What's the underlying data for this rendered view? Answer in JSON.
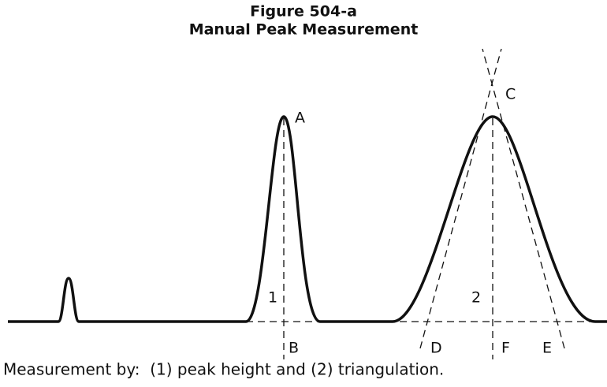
{
  "header": {
    "figure": "Figure 504-a",
    "title": "Manual Peak Measurement"
  },
  "labels": {
    "peak_a": "A",
    "baseline_b": "B",
    "apex_c": "C",
    "point_d": "D",
    "point_e": "E",
    "point_f": "F",
    "height_1": "1",
    "height_2": "2"
  },
  "caption": "Measurement by:  (1) peak height and (2) triangulation."
}
